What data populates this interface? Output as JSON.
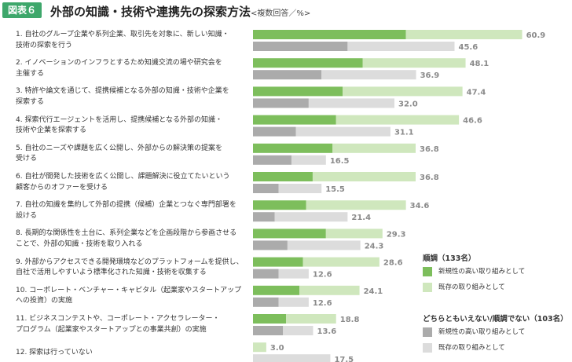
{
  "figure_label": "図表６",
  "title": "外部の知識・技術や連携先の探索方法",
  "title_note": "<複数回答／%>",
  "colors": {
    "primary_dark": "#7dbe5c",
    "primary_light": "#cfe7bd",
    "secondary_dark": "#ababab",
    "secondary_light": "#dcdcdc"
  },
  "chart_data": {
    "type": "bar",
    "orientation": "horizontal",
    "xlim": [
      0,
      100
    ],
    "categories": [
      "1. 自社のグループ企業や系列企業、取引先を対象に、新しい知識・技術の探索を行う",
      "2. イノベーションのインフラとするため知識交流の場や研究会を主催する",
      "3. 特許や論文を通じて、提携候補となる外部の知識・技術や企業を探索する",
      "4. 探索代行エージェントを活用し、提携候補となる外部の知識・技術や企業を探索する",
      "5. 自社のニーズや課題を広く公開し、外部からの解決策の提案を受ける",
      "6. 自社が開発した技術を広く公開し、課題解決に役立てたいという顧客からのオファーを受ける",
      "7. 自社の知識を集約して外部の提携（候補）企業とつなぐ専門部署を設ける",
      "8. 長期的な関係性を土台に、系列企業などを企画段階から参画させることで、外部の知識・技術を取り入れる",
      "9. 外部からアクセスできる開発環境などのプラットフォームを提供し、自社で活用しやすいよう標準化された知識・技術を収集する",
      "10. コーポレート・ベンチャー・キャピタル（起業家やスタートアップへの投資）の実施",
      "11. ビジネスコンテストや、コーポレート・アクセラレーター・プログラム（起業家やスタートアップとの事業共創）の実施",
      "12. 探索は行っていない"
    ],
    "row_labels": [
      [
        "1. 自社のグループ企業や系列企業、取引先を対象に、新しい知識・",
        "技術の探索を行う"
      ],
      [
        "2. イノベーションのインフラとするため知識交流の場や研究会を",
        "主催する"
      ],
      [
        "3. 特許や論文を通じて、提携候補となる外部の知識・技術や企業を",
        "探索する"
      ],
      [
        "4. 探索代行エージェントを活用し、提携候補となる外部の知識・",
        "技術や企業を探索する"
      ],
      [
        "5. 自社のニーズや課題を広く公開し、外部からの解決策の提案を",
        "受ける"
      ],
      [
        "6. 自社が開発した技術を広く公開し、課題解決に役立てたいという",
        "顧客からのオファーを受ける"
      ],
      [
        "7. 自社の知識を集約して外部の提携（候補）企業とつなぐ専門部署を",
        "設ける"
      ],
      [
        "8. 長期的な関係性を土台に、系列企業などを企画段階から参画させる",
        "ことで、外部の知識・技術を取り入れる"
      ],
      [
        "9. 外部からアクセスできる開発環境などのプラットフォームを提供し、",
        "自社で活用しやすいよう標準化された知識・技術を収集する"
      ],
      [
        "10. コーポレート・ベンチャー・キャピタル（起業家やスタートアップ",
        "への投資）の実施"
      ],
      [
        "11. ビジネスコンテストや、コーポレート・アクセラレーター・",
        "プログラム（起業家やスタートアップとの事業共創）の実施"
      ],
      [
        "12. 探索は行っていない"
      ]
    ],
    "series": [
      {
        "group": "順調（133名）",
        "total": [
          60.9,
          48.1,
          47.4,
          46.6,
          36.8,
          36.8,
          34.6,
          29.3,
          28.6,
          24.1,
          18.8,
          3.0
        ],
        "parts": [
          {
            "name": "新規性の高い取り組みとして",
            "values": [
              34.6,
              24.8,
              20.3,
              18.8,
              18.0,
              13.5,
              12.0,
              16.5,
              11.3,
              10.5,
              7.5,
              0
            ]
          },
          {
            "name": "既存の取り組みとして",
            "values": [
              26.3,
              23.3,
              27.1,
              27.8,
              18.8,
              23.3,
              22.6,
              12.8,
              17.3,
              13.6,
              11.3,
              3.0
            ]
          }
        ]
      },
      {
        "group": "どちらともいえない/順調でない（103名）",
        "total": [
          45.6,
          36.9,
          32.0,
          31.1,
          16.5,
          15.5,
          21.4,
          24.3,
          12.6,
          12.6,
          13.6,
          17.5
        ],
        "parts": [
          {
            "name": "新規性の高い取り組みとして",
            "values": [
              21.4,
              15.5,
              12.6,
              9.7,
              8.7,
              5.8,
              4.9,
              7.8,
              5.8,
              5.8,
              6.8,
              0
            ]
          },
          {
            "name": "既存の取り組みとして",
            "values": [
              24.2,
              21.4,
              19.4,
              21.4,
              7.8,
              9.7,
              16.5,
              16.5,
              6.8,
              6.8,
              6.8,
              17.5
            ]
          }
        ]
      }
    ]
  },
  "legend": [
    {
      "title": "順調（133名）",
      "items": [
        "新規性の高い取り組みとして",
        "既存の取り組みとして"
      ]
    },
    {
      "title": "どちらともいえない/順調でない（103名）",
      "items": [
        "新規性の高い取り組みとして",
        "既存の取り組みとして"
      ]
    }
  ]
}
